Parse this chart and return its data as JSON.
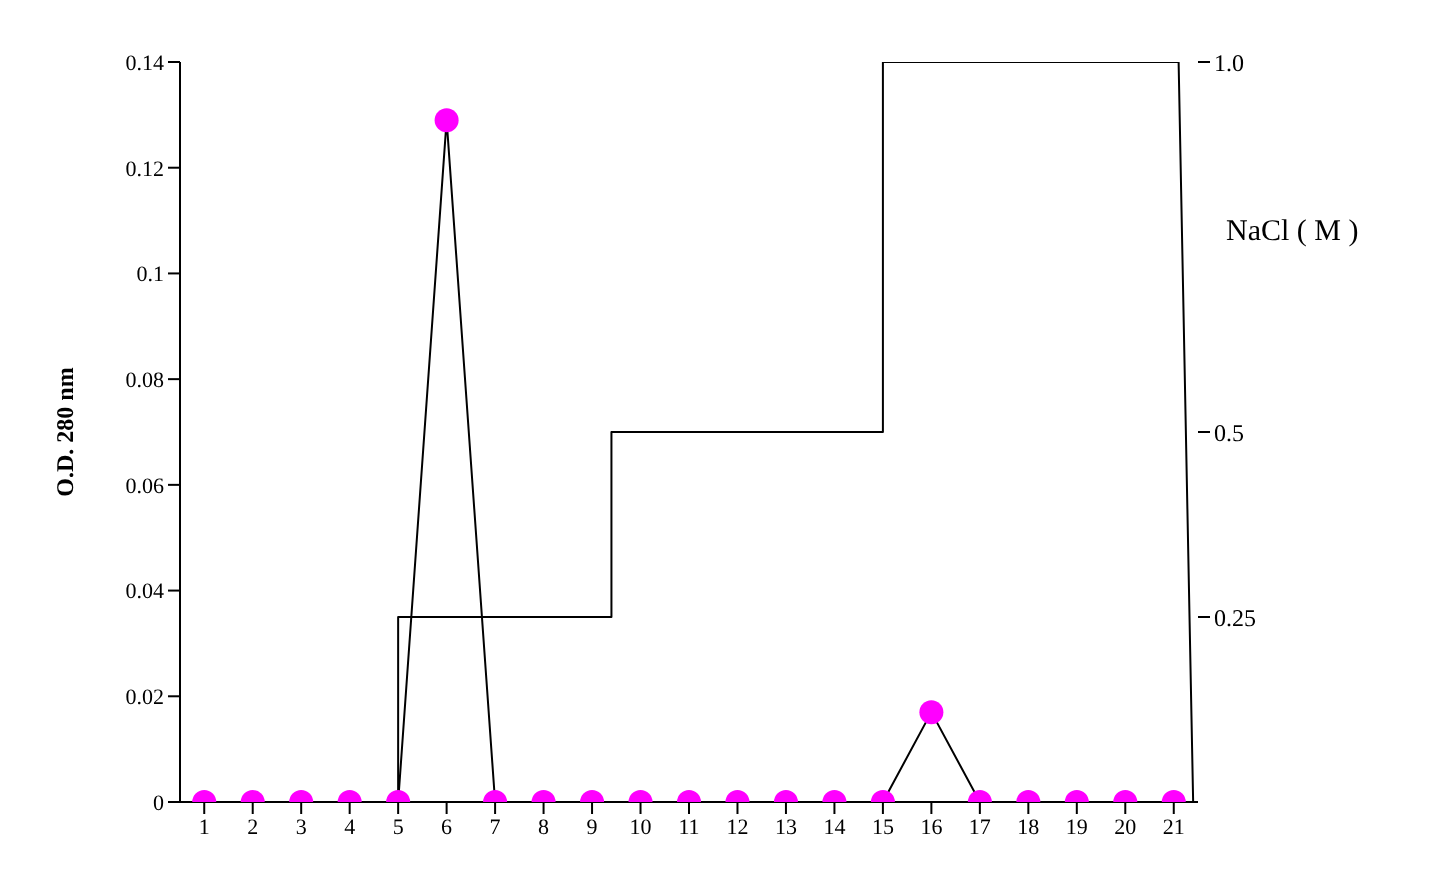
{
  "chart_data": {
    "type": "line",
    "ylabel": "O.D.  280 nm",
    "y2label": "NaCl ( M )",
    "xlim": [
      0.5,
      21.5
    ],
    "xticks": [
      1,
      2,
      3,
      4,
      5,
      6,
      7,
      8,
      9,
      10,
      11,
      12,
      13,
      14,
      15,
      16,
      17,
      18,
      19,
      20,
      21
    ],
    "ylim": [
      0,
      0.14
    ],
    "yticks": [
      0,
      0.02,
      0.04,
      0.06,
      0.08,
      0.1,
      0.12,
      0.14
    ],
    "y2lim": [
      0,
      1.0
    ],
    "y2ticks": [
      0.25,
      0.5,
      {
        "value": 1.0,
        "label": "1.0"
      }
    ],
    "grid": false,
    "legend": false,
    "series": [
      {
        "color": "#ff00ff",
        "marker": "circle",
        "x": [
          1,
          2,
          3,
          4,
          5,
          6,
          7,
          8,
          9,
          10,
          11,
          12,
          13,
          14,
          15,
          16,
          17,
          18,
          19,
          20,
          21
        ],
        "values": [
          0,
          0,
          0,
          0,
          0,
          0.129,
          0,
          0,
          0,
          0,
          0,
          0,
          0,
          0,
          0,
          0.017,
          0,
          0,
          0,
          0,
          0
        ]
      },
      {
        "color": "#000000",
        "marker": "none",
        "axis": "y2",
        "x": [
          1,
          5,
          5,
          9.4,
          9.4,
          15,
          15,
          21.1,
          21.4
        ],
        "values": [
          0,
          0,
          0.25,
          0.25,
          0.5,
          0.5,
          1.0,
          1.0,
          0
        ]
      }
    ]
  }
}
